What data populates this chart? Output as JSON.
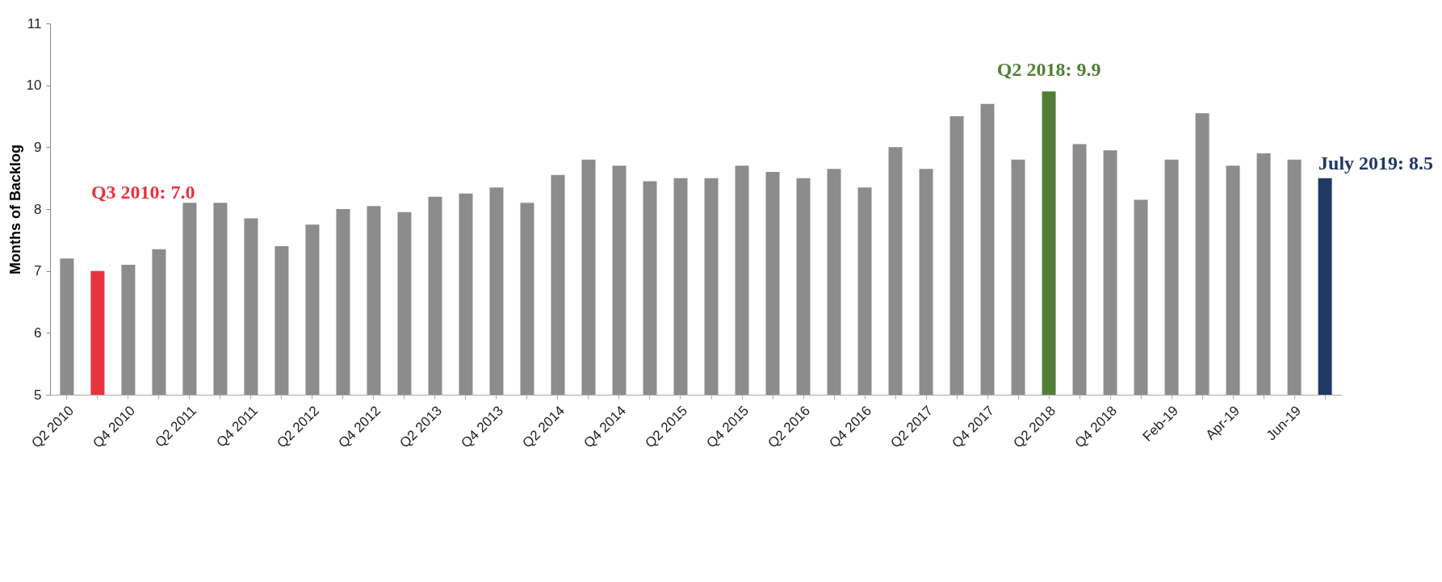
{
  "chart_data": {
    "type": "bar",
    "ylabel": "Months of Backlog",
    "categories": [
      "Q2 2010",
      null,
      "Q4 2010",
      null,
      "Q2 2011",
      null,
      "Q4 2011",
      null,
      "Q2 2012",
      null,
      "Q4 2012",
      null,
      "Q2 2013",
      null,
      "Q4 2013",
      null,
      "Q2 2014",
      null,
      "Q4 2014",
      null,
      "Q2 2015",
      null,
      "Q4 2015",
      null,
      "Q2 2016",
      null,
      "Q4 2016",
      null,
      "Q2 2017",
      null,
      "Q4 2017",
      null,
      "Q2 2018",
      null,
      "Q4 2018",
      null,
      "Feb-19",
      null,
      "Apr-19",
      null,
      "Jun-19",
      null
    ],
    "values": [
      7.2,
      7.0,
      7.1,
      7.35,
      8.1,
      8.1,
      7.85,
      7.4,
      7.75,
      8.0,
      8.05,
      7.95,
      8.2,
      8.25,
      8.35,
      8.1,
      8.55,
      8.8,
      8.7,
      8.45,
      8.5,
      8.5,
      8.7,
      8.6,
      8.5,
      8.65,
      8.35,
      9.0,
      8.65,
      9.5,
      9.7,
      8.8,
      9.9,
      9.05,
      8.95,
      8.15,
      8.8,
      9.55,
      8.7,
      8.9,
      8.8,
      8.5
    ],
    "colors": [
      "#8c8c8c",
      "#e8333f",
      "#8c8c8c",
      "#8c8c8c",
      "#8c8c8c",
      "#8c8c8c",
      "#8c8c8c",
      "#8c8c8c",
      "#8c8c8c",
      "#8c8c8c",
      "#8c8c8c",
      "#8c8c8c",
      "#8c8c8c",
      "#8c8c8c",
      "#8c8c8c",
      "#8c8c8c",
      "#8c8c8c",
      "#8c8c8c",
      "#8c8c8c",
      "#8c8c8c",
      "#8c8c8c",
      "#8c8c8c",
      "#8c8c8c",
      "#8c8c8c",
      "#8c8c8c",
      "#8c8c8c",
      "#8c8c8c",
      "#8c8c8c",
      "#8c8c8c",
      "#8c8c8c",
      "#8c8c8c",
      "#8c8c8c",
      "#4f7f35",
      "#8c8c8c",
      "#8c8c8c",
      "#8c8c8c",
      "#8c8c8c",
      "#8c8c8c",
      "#8c8c8c",
      "#8c8c8c",
      "#8c8c8c",
      "#1f3864"
    ],
    "ylim": [
      5,
      11
    ],
    "yticks": [
      5,
      6,
      7,
      8,
      9,
      10,
      11
    ],
    "grid": false,
    "annotations": [
      "Q3 2010: 7.0",
      {
        "text": "Q2 2018: 9.9",
        "x": "Q2 2018",
        "y": 9.9
      },
      "July 2019: 8.5"
    ]
  }
}
